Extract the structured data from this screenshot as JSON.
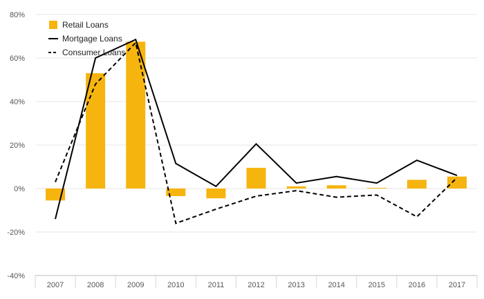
{
  "chart_data": {
    "type": "bar",
    "categories": [
      "2007",
      "2008",
      "2009",
      "2010",
      "2011",
      "2012",
      "2013",
      "2014",
      "2015",
      "2016",
      "2017"
    ],
    "ylim": [
      -40,
      80
    ],
    "yticks": [
      -40,
      -20,
      0,
      20,
      40,
      60,
      80
    ],
    "ytick_labels": [
      "-40%",
      "-20%",
      "0%",
      "20%",
      "40%",
      "60%",
      "80%"
    ],
    "grid": true,
    "legend_position": "top-left",
    "series": [
      {
        "name": "Retail Loans",
        "kind": "bar",
        "color": "#F6B40E",
        "values": [
          -5.5,
          53,
          67.5,
          -3.5,
          -4.5,
          9.5,
          1,
          1.5,
          0.3,
          4,
          5.5
        ]
      },
      {
        "name": "Mortgage Loans",
        "kind": "line",
        "style": "solid",
        "color": "#000000",
        "values": [
          -14,
          60,
          68.5,
          11.5,
          1,
          20.5,
          2.5,
          5.5,
          2.5,
          13,
          6
        ]
      },
      {
        "name": "Consumer Loans",
        "kind": "line",
        "style": "dashed",
        "color": "#000000",
        "values": [
          3,
          48,
          67,
          -16,
          -9.5,
          -3.5,
          -1,
          -4,
          -3,
          -13,
          5
        ]
      }
    ]
  }
}
